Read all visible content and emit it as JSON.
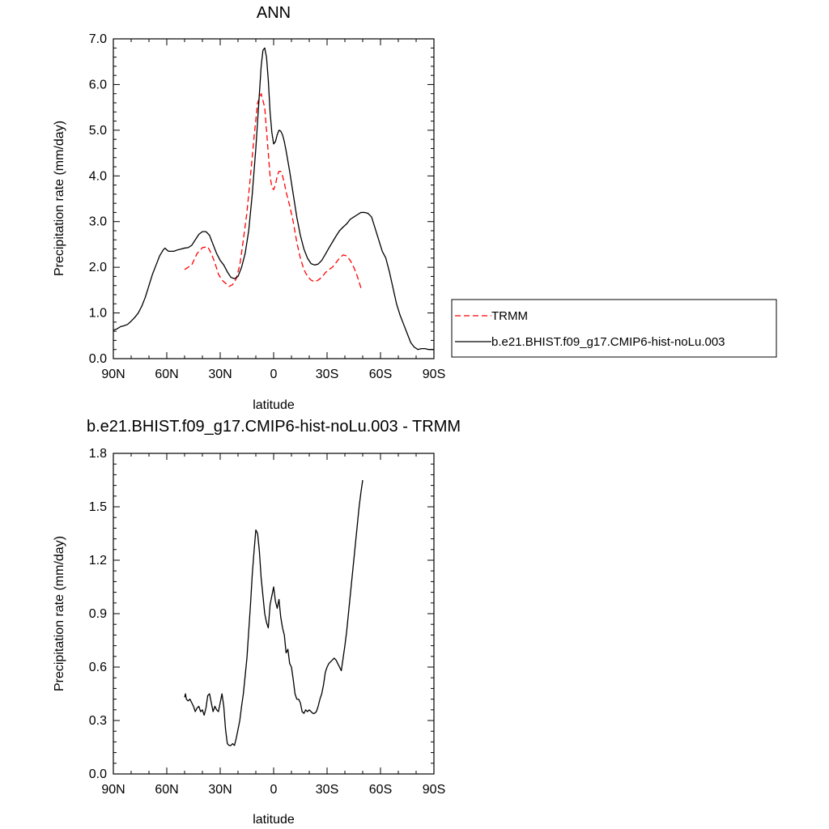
{
  "chart_data": [
    {
      "type": "line",
      "title": "ANN",
      "xlabel": "latitude",
      "ylabel": "Precipitation rate (mm/day)",
      "xlim": [
        90,
        -90
      ],
      "ylim": [
        0,
        7
      ],
      "x_ticks": [
        90,
        60,
        30,
        0,
        -30,
        -60,
        -90
      ],
      "x_tick_labels": [
        "90N",
        "60N",
        "30N",
        "0",
        "30S",
        "60S",
        "90S"
      ],
      "y_ticks": [
        0,
        1,
        2,
        3,
        4,
        5,
        6,
        7
      ],
      "y_tick_labels": [
        "0.0",
        "1.0",
        "2.0",
        "3.0",
        "4.0",
        "5.0",
        "6.0",
        "7.0"
      ],
      "grid": false,
      "legend_position": "right",
      "series": [
        {
          "name": "TRMM",
          "color": "#ff0000",
          "dash": "dashed",
          "x": [
            50,
            46,
            43,
            40,
            37,
            35,
            33,
            31,
            29,
            27,
            25,
            23,
            21,
            19,
            17,
            15,
            13,
            11,
            9,
            7,
            5,
            4,
            3,
            2,
            1,
            0,
            -1,
            -2,
            -3,
            -4,
            -5,
            -6,
            -7,
            -9,
            -11,
            -13,
            -15,
            -17,
            -19,
            -21,
            -23,
            -25,
            -27,
            -29,
            -31,
            -33,
            -35,
            -37,
            -39,
            -41,
            -43,
            -45,
            -47,
            -49,
            -50
          ],
          "y": [
            1.95,
            2.05,
            2.3,
            2.43,
            2.45,
            2.3,
            2.1,
            1.85,
            1.72,
            1.65,
            1.58,
            1.62,
            1.75,
            2.05,
            2.6,
            3.2,
            4.0,
            4.85,
            5.6,
            5.8,
            5.5,
            5.0,
            4.5,
            4.0,
            3.75,
            3.7,
            3.8,
            4.0,
            4.1,
            4.1,
            4.0,
            3.85,
            3.65,
            3.35,
            3.0,
            2.55,
            2.2,
            1.95,
            1.8,
            1.72,
            1.68,
            1.72,
            1.78,
            1.88,
            1.95,
            2.0,
            2.1,
            2.2,
            2.27,
            2.25,
            2.15,
            2.0,
            1.8,
            1.55,
            1.5
          ]
        },
        {
          "name": "b.e21.BHIST.f09_g17.CMIP6-hist-noLu.003",
          "color": "#000000",
          "dash": "solid",
          "x": [
            90,
            88,
            86,
            84,
            82,
            80,
            78,
            76,
            74,
            72,
            70,
            68,
            66,
            64,
            62,
            61,
            60,
            59,
            58,
            56,
            54,
            52,
            50,
            48,
            46,
            44,
            42,
            40,
            38,
            36,
            34,
            32,
            30,
            28,
            26,
            24,
            22,
            20,
            18,
            16,
            14,
            12,
            10,
            8,
            7,
            6,
            5,
            4,
            3,
            2,
            1,
            0,
            -1,
            -2,
            -3,
            -4,
            -5,
            -6,
            -7,
            -9,
            -11,
            -13,
            -15,
            -17,
            -19,
            -21,
            -23,
            -25,
            -27,
            -29,
            -31,
            -33,
            -35,
            -37,
            -39,
            -41,
            -43,
            -45,
            -47,
            -49,
            -51,
            -53,
            -55,
            -57,
            -59,
            -61,
            -63,
            -65,
            -67,
            -69,
            -71,
            -73,
            -75,
            -77,
            -79,
            -81,
            -83,
            -85,
            -87,
            -89,
            -90
          ],
          "y": [
            0.62,
            0.65,
            0.7,
            0.72,
            0.75,
            0.82,
            0.9,
            1.0,
            1.15,
            1.35,
            1.6,
            1.85,
            2.05,
            2.25,
            2.38,
            2.42,
            2.38,
            2.35,
            2.35,
            2.35,
            2.38,
            2.4,
            2.42,
            2.43,
            2.48,
            2.6,
            2.72,
            2.78,
            2.78,
            2.7,
            2.5,
            2.3,
            2.15,
            2.05,
            1.9,
            1.78,
            1.75,
            1.8,
            2.0,
            2.3,
            2.8,
            3.6,
            4.6,
            5.8,
            6.4,
            6.75,
            6.8,
            6.6,
            6.1,
            5.4,
            4.95,
            4.7,
            4.75,
            4.9,
            5.0,
            4.98,
            4.9,
            4.75,
            4.55,
            4.1,
            3.6,
            3.1,
            2.7,
            2.4,
            2.2,
            2.08,
            2.05,
            2.07,
            2.15,
            2.28,
            2.42,
            2.55,
            2.68,
            2.8,
            2.88,
            2.95,
            3.05,
            3.1,
            3.15,
            3.2,
            3.2,
            3.18,
            3.1,
            2.85,
            2.6,
            2.35,
            2.2,
            1.9,
            1.55,
            1.2,
            0.95,
            0.75,
            0.55,
            0.35,
            0.25,
            0.2,
            0.22,
            0.22,
            0.2,
            0.2,
            0.2
          ]
        }
      ]
    },
    {
      "type": "line",
      "title": "b.e21.BHIST.f09_g17.CMIP6-hist-noLu.003 - TRMM",
      "xlabel": "latitude",
      "ylabel": "Precipitation rate (mm/day)",
      "xlim": [
        90,
        -90
      ],
      "ylim": [
        0,
        1.8
      ],
      "x_ticks": [
        90,
        60,
        30,
        0,
        -30,
        -60,
        -90
      ],
      "x_tick_labels": [
        "90N",
        "60N",
        "30N",
        "0",
        "30S",
        "60S",
        "90S"
      ],
      "y_ticks": [
        0,
        0.3,
        0.6,
        0.9,
        1.2,
        1.5,
        1.8
      ],
      "y_tick_labels": [
        "0.0",
        "0.3",
        "0.6",
        "0.9",
        "1.2",
        "1.5",
        "1.8"
      ],
      "grid": false,
      "series": [
        {
          "color": "#000000",
          "dash": "solid",
          "x": [
            50,
            49.5,
            49,
            48,
            47,
            46,
            45,
            44,
            43,
            42,
            41,
            40,
            39,
            38,
            37,
            36,
            35,
            34,
            33,
            32,
            31,
            30,
            29,
            28,
            27,
            26,
            25,
            24,
            23,
            22,
            21,
            20,
            19,
            18,
            17,
            16,
            15,
            14,
            13,
            12,
            11,
            10,
            9,
            8,
            7,
            6,
            5,
            4,
            3,
            2,
            1,
            0,
            -1,
            -2,
            -3,
            -4,
            -5,
            -6,
            -7,
            -8,
            -9,
            -10,
            -11,
            -12,
            -13,
            -14,
            -15,
            -16,
            -17,
            -18,
            -19,
            -20,
            -21,
            -22,
            -23,
            -24,
            -25,
            -26,
            -27,
            -28,
            -29,
            -30,
            -31,
            -32,
            -33,
            -34,
            -35,
            -36,
            -37,
            -38,
            -39,
            -40,
            -41,
            -42,
            -43,
            -44,
            -45,
            -46,
            -47,
            -48,
            -49,
            -50
          ],
          "y": [
            0.43,
            0.45,
            0.42,
            0.41,
            0.42,
            0.4,
            0.38,
            0.35,
            0.37,
            0.38,
            0.35,
            0.36,
            0.33,
            0.37,
            0.44,
            0.45,
            0.4,
            0.35,
            0.38,
            0.36,
            0.35,
            0.4,
            0.45,
            0.38,
            0.25,
            0.17,
            0.16,
            0.16,
            0.17,
            0.16,
            0.2,
            0.25,
            0.3,
            0.38,
            0.45,
            0.55,
            0.65,
            0.8,
            0.95,
            1.12,
            1.25,
            1.37,
            1.35,
            1.25,
            1.1,
            1.0,
            0.9,
            0.85,
            0.82,
            0.95,
            1.0,
            1.05,
            0.97,
            0.93,
            0.98,
            0.88,
            0.82,
            0.78,
            0.68,
            0.7,
            0.62,
            0.6,
            0.53,
            0.45,
            0.42,
            0.42,
            0.4,
            0.35,
            0.34,
            0.36,
            0.35,
            0.36,
            0.35,
            0.34,
            0.34,
            0.35,
            0.38,
            0.42,
            0.45,
            0.5,
            0.57,
            0.6,
            0.62,
            0.63,
            0.64,
            0.65,
            0.64,
            0.62,
            0.6,
            0.58,
            0.65,
            0.72,
            0.8,
            0.9,
            1.0,
            1.1,
            1.2,
            1.3,
            1.4,
            1.5,
            1.58,
            1.65
          ]
        }
      ]
    }
  ]
}
